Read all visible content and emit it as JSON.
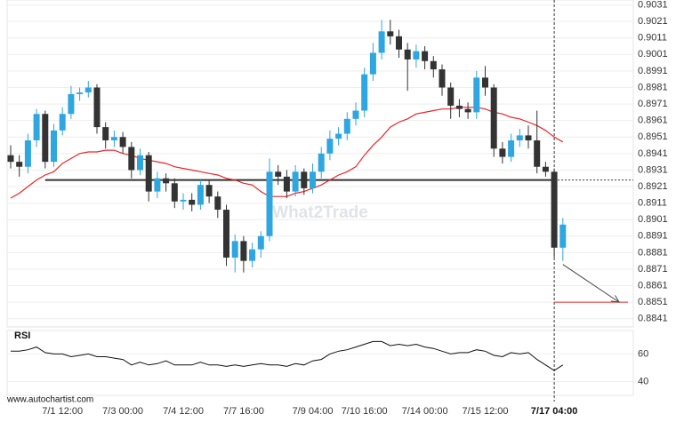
{
  "chart_data": {
    "type": "candlestick",
    "categories": [
      null,
      null,
      null,
      null,
      null,
      null,
      "7/1 12:00",
      null,
      null,
      null,
      null,
      null,
      null,
      "7/3 00:00",
      null,
      null,
      null,
      null,
      null,
      null,
      "7/4 12:00",
      null,
      null,
      null,
      null,
      null,
      null,
      "7/7 16:00",
      null,
      null,
      null,
      null,
      null,
      null,
      null,
      "7/9 04:00",
      null,
      null,
      null,
      null,
      null,
      "7/10 16:00",
      null,
      null,
      null,
      null,
      null,
      null,
      "7/14 00:00",
      null,
      null,
      null,
      null,
      null,
      null,
      "7/15 12:00",
      null,
      null,
      null,
      null,
      null,
      null,
      null,
      "7/17 04:00",
      null
    ],
    "open": [
      0.894,
      0.8936,
      0.8933,
      0.8949,
      0.8965,
      0.8936,
      0.8955,
      0.8965,
      0.8977,
      0.8978,
      0.8981,
      0.8957,
      0.8949,
      0.8951,
      0.8945,
      0.8931,
      0.894,
      0.8918,
      0.8926,
      0.8923,
      0.8912,
      0.8913,
      0.891,
      0.8922,
      0.8915,
      0.8907,
      0.8878,
      0.8888,
      0.8876,
      0.8883,
      0.8891,
      0.893,
      0.8927,
      0.8918,
      0.893,
      0.892,
      0.893,
      0.8941,
      0.895,
      0.8953,
      0.8962,
      0.8967,
      0.8989,
      0.9002,
      0.9015,
      0.9012,
      0.9004,
      0.8998,
      0.9003,
      0.8997,
      0.8992,
      0.8981,
      0.897,
      0.8968,
      0.8966,
      0.8987,
      0.8981,
      0.8944,
      0.8939,
      0.8949,
      0.8952,
      0.8949,
      0.8933,
      0.893,
      0.8884
    ],
    "high": [
      0.8946,
      0.894,
      0.8953,
      0.8968,
      0.8967,
      0.8959,
      0.8969,
      0.8982,
      0.8981,
      0.8985,
      0.8983,
      0.896,
      0.8955,
      0.8954,
      0.8948,
      0.8944,
      0.8942,
      0.893,
      0.8929,
      0.8926,
      0.8917,
      0.8917,
      0.8925,
      0.8925,
      0.8918,
      0.891,
      0.8892,
      0.8891,
      0.8887,
      0.8894,
      0.8938,
      0.8934,
      0.8931,
      0.8934,
      0.8932,
      0.8935,
      0.8945,
      0.8955,
      0.8957,
      0.8966,
      0.8972,
      0.8993,
      0.9008,
      0.9022,
      0.9022,
      0.9016,
      0.9008,
      0.9007,
      0.9006,
      0.9,
      0.8995,
      0.8984,
      0.8974,
      0.8972,
      0.8991,
      0.8994,
      0.8983,
      0.8948,
      0.8953,
      0.8956,
      0.8958,
      0.8967,
      0.8936,
      0.8932,
      0.8902
    ],
    "low": [
      0.8932,
      0.8927,
      0.8929,
      0.8945,
      0.8932,
      0.8933,
      0.8952,
      0.8962,
      0.8973,
      0.8975,
      0.8953,
      0.8944,
      0.8945,
      0.8941,
      0.8926,
      0.8928,
      0.8912,
      0.8914,
      0.8918,
      0.8908,
      0.8907,
      0.8906,
      0.8907,
      0.8911,
      0.8902,
      0.8873,
      0.8869,
      0.8869,
      0.8872,
      0.8878,
      0.8888,
      0.8922,
      0.8914,
      0.8915,
      0.8916,
      0.8917,
      0.8926,
      0.8937,
      0.8946,
      0.8949,
      0.8958,
      0.8963,
      0.8985,
      0.8998,
      0.9007,
      0.8999,
      0.8979,
      0.8993,
      0.8992,
      0.8987,
      0.8976,
      0.8962,
      0.8963,
      0.8962,
      0.8962,
      0.8976,
      0.8939,
      0.8935,
      0.8936,
      0.8945,
      0.8944,
      0.8929,
      0.8927,
      0.8878,
      0.8876
    ],
    "close": [
      0.8936,
      0.8933,
      0.8949,
      0.8965,
      0.8936,
      0.8955,
      0.8965,
      0.8977,
      0.8978,
      0.8981,
      0.8957,
      0.8949,
      0.8951,
      0.8945,
      0.8931,
      0.894,
      0.8918,
      0.8926,
      0.8923,
      0.8912,
      0.8913,
      0.891,
      0.8922,
      0.8915,
      0.8907,
      0.8878,
      0.8888,
      0.8876,
      0.8883,
      0.8891,
      0.893,
      0.8927,
      0.8918,
      0.893,
      0.892,
      0.893,
      0.8941,
      0.895,
      0.8953,
      0.8962,
      0.8967,
      0.8989,
      0.9002,
      0.9015,
      0.9012,
      0.9004,
      0.8998,
      0.9003,
      0.8997,
      0.8992,
      0.8981,
      0.897,
      0.8968,
      0.8966,
      0.8987,
      0.8981,
      0.8944,
      0.8939,
      0.8949,
      0.8952,
      0.8949,
      0.8933,
      0.893,
      0.8884,
      0.8898
    ],
    "up_color": "#2ea6e0",
    "down_color": "#333333",
    "ma": {
      "color": "#e8262b",
      "values": [
        0.8914,
        0.8917,
        0.8921,
        0.8925,
        0.8928,
        0.893,
        0.8935,
        0.8938,
        0.8941,
        0.8942,
        0.8942,
        0.8943,
        0.8943,
        0.8941,
        0.894,
        0.8938,
        0.8937,
        0.8936,
        0.8935,
        0.8933,
        0.8932,
        0.8931,
        0.893,
        0.8929,
        0.8928,
        0.8926,
        0.8925,
        0.8923,
        0.8922,
        0.8918,
        0.8915,
        0.8915,
        0.8915,
        0.8917,
        0.8918,
        0.892,
        0.8922,
        0.8925,
        0.8928,
        0.893,
        0.8933,
        0.894,
        0.8946,
        0.8951,
        0.8957,
        0.896,
        0.8962,
        0.8965,
        0.8966,
        0.8967,
        0.8968,
        0.8968,
        0.8969,
        0.8969,
        0.8969,
        0.8968,
        0.8966,
        0.8965,
        0.8963,
        0.8962,
        0.896,
        0.8958,
        0.8955,
        0.8951,
        0.8948
      ]
    },
    "ylim": [
      0.8836,
      0.9034
    ],
    "yticks": [
      0.8841,
      0.8851,
      0.8861,
      0.8871,
      0.8881,
      0.8891,
      0.8901,
      0.8911,
      0.8921,
      0.8931,
      0.8941,
      0.8951,
      0.8961,
      0.8971,
      0.8981,
      0.8991,
      0.9001,
      0.9011,
      0.9021,
      0.9031
    ],
    "support_level": 0.8925,
    "support_color": "#333333",
    "target_level": 0.8851,
    "target_color": "#e8262b",
    "watermark": "What2Trade",
    "rsi": {
      "label": "RSI",
      "color": "#111111",
      "ylim": [
        30,
        77
      ],
      "yticks": [
        40,
        60
      ],
      "values": [
        62,
        62,
        63,
        65,
        61,
        60,
        60,
        58,
        59,
        60,
        58,
        58,
        57,
        56,
        52,
        54,
        52,
        53,
        55,
        52,
        52,
        52,
        54,
        52,
        52,
        51,
        52,
        51,
        52,
        53,
        52,
        52,
        51,
        53,
        52,
        55,
        56,
        60,
        62,
        63,
        65,
        67,
        69,
        69,
        66,
        67,
        66,
        67,
        65,
        64,
        62,
        60,
        61,
        61,
        63,
        62,
        59,
        58,
        61,
        60,
        61,
        56,
        52,
        48,
        52
      ]
    },
    "source": "www.autochartist.com"
  }
}
